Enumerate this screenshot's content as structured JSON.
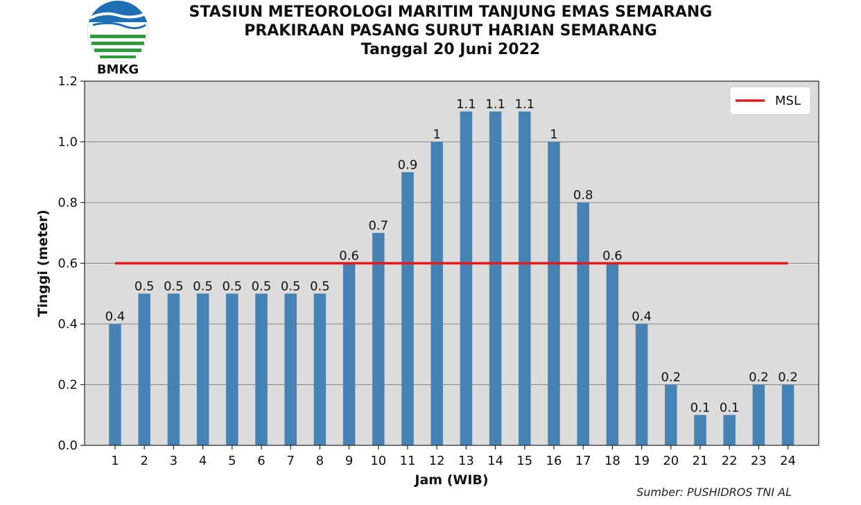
{
  "header": {
    "logo_text": "BMKG",
    "title_line1": "STASIUN METEOROLOGI MARITIM TANJUNG EMAS SEMARANG",
    "title_line2": "PRAKIRAAN PASANG SURUT HARIAN SEMARANG",
    "title_line3": "Tanggal 20 Juni 2022"
  },
  "source_note": "Sumber: PUSHIDROS TNI AL",
  "colors": {
    "bar": "#4682b4",
    "msl_line": "#e3191c",
    "plot_bg": "#dcdcdc",
    "grid": "#888888",
    "logo_blue": "#1f6fb5",
    "logo_green": "#2e9b3e"
  },
  "chart_data": {
    "type": "bar",
    "categories": [
      "1",
      "2",
      "3",
      "4",
      "5",
      "6",
      "7",
      "8",
      "9",
      "10",
      "11",
      "12",
      "13",
      "14",
      "15",
      "16",
      "17",
      "18",
      "19",
      "20",
      "21",
      "22",
      "23",
      "24"
    ],
    "values": [
      0.4,
      0.5,
      0.5,
      0.5,
      0.5,
      0.5,
      0.5,
      0.5,
      0.6,
      0.7,
      0.9,
      1.0,
      1.1,
      1.1,
      1.1,
      1.0,
      0.8,
      0.6,
      0.4,
      0.2,
      0.1,
      0.1,
      0.2,
      0.2
    ],
    "data_labels": [
      "0.4",
      "0.5",
      "0.5",
      "0.5",
      "0.5",
      "0.5",
      "0.5",
      "0.5",
      "0.6",
      "0.7",
      "0.9",
      "1",
      "1.1",
      "1.1",
      "1.1",
      "1",
      "0.8",
      "0.6",
      "0.4",
      "0.2",
      "0.1",
      "0.1",
      "0.2",
      "0.2"
    ],
    "xlabel": "Jam (WIB)",
    "ylabel": "Tinggi (meter)",
    "ylim": [
      0,
      1.2
    ],
    "yticks": [
      "0.0",
      "0.2",
      "0.4",
      "0.6",
      "0.8",
      "1.0",
      "1.2"
    ],
    "ytick_values": [
      0,
      0.2,
      0.4,
      0.6,
      0.8,
      1.0,
      1.2
    ],
    "msl": {
      "name": "MSL",
      "value": 0.6
    },
    "grid": true,
    "legend_position": "top-right"
  }
}
